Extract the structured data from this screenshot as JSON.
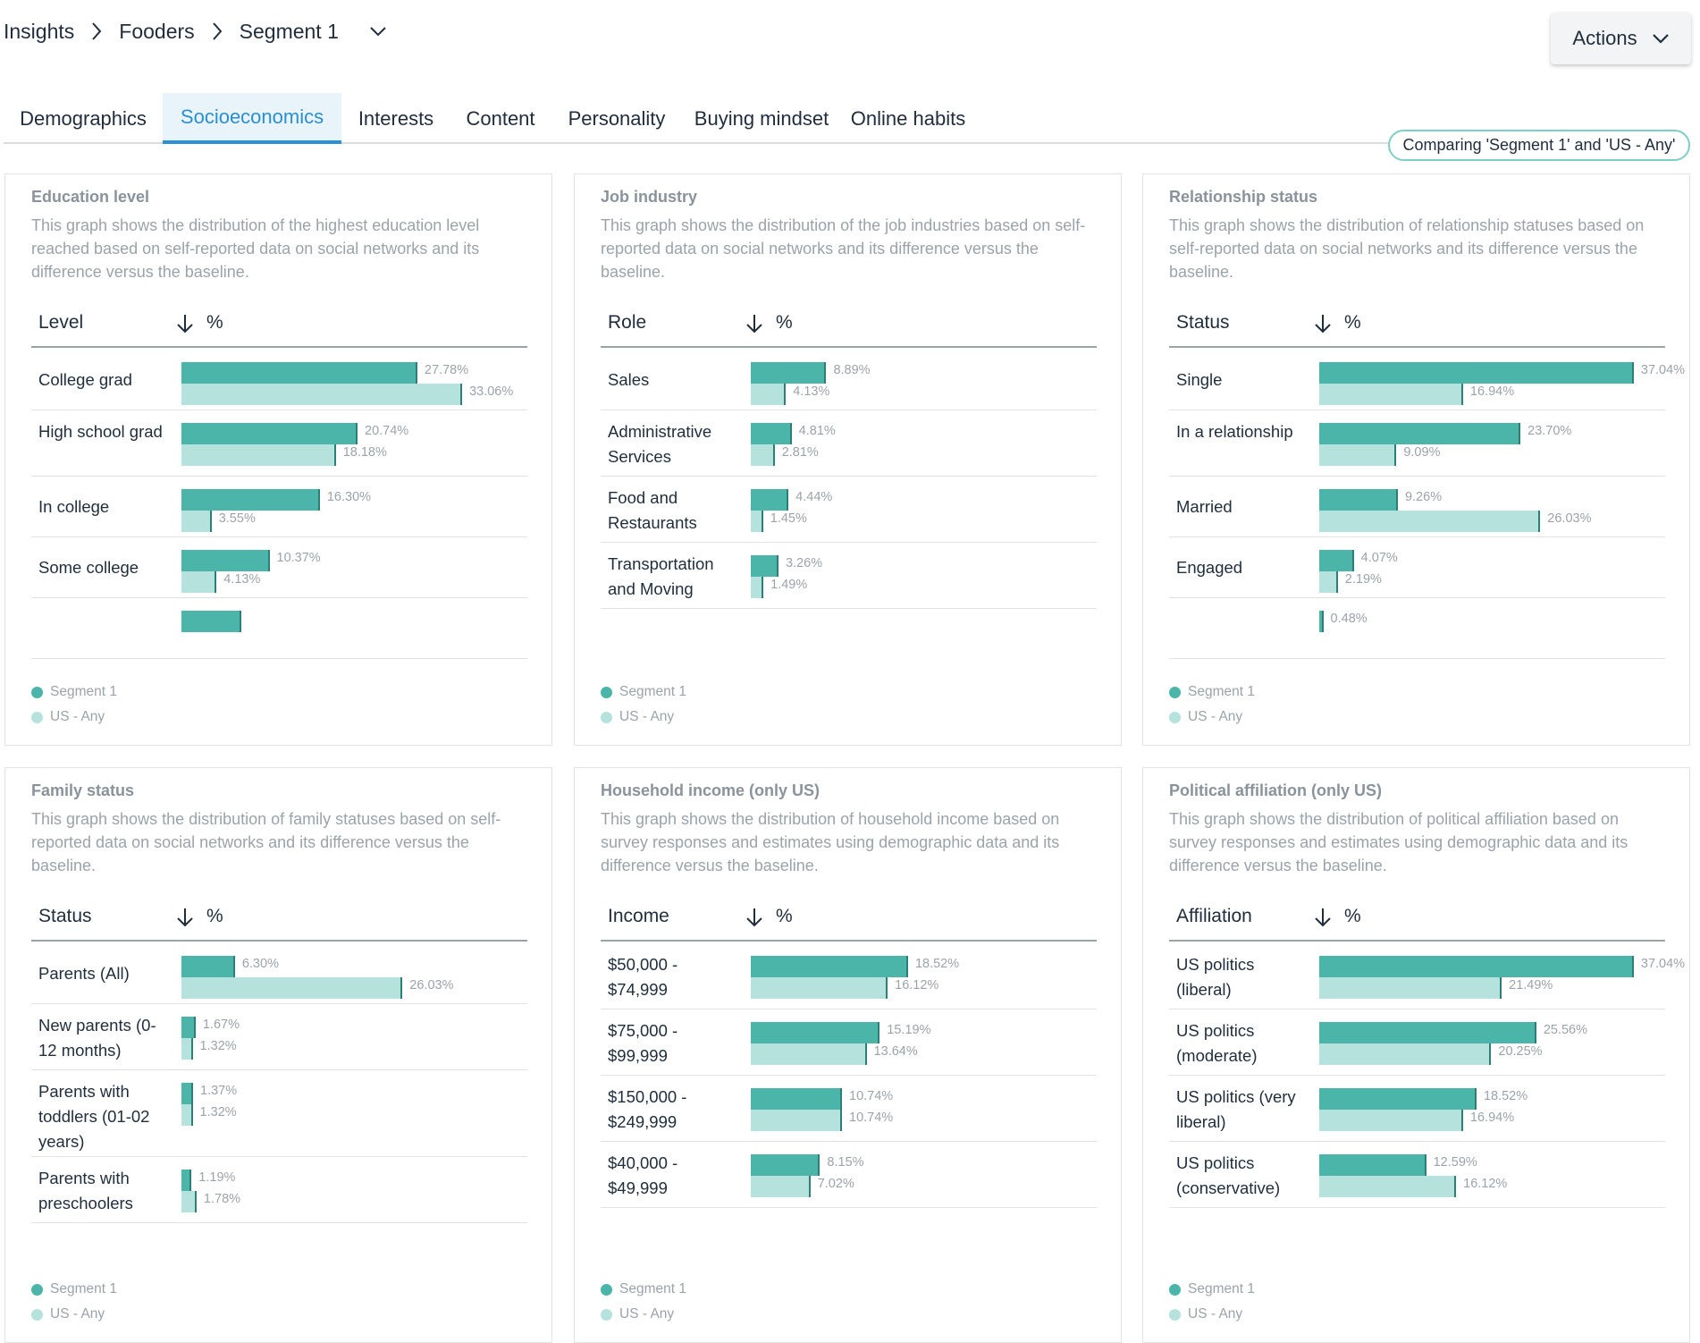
{
  "breadcrumb": {
    "items": [
      "Insights",
      "Fooders",
      "Segment 1"
    ]
  },
  "actions": {
    "label": "Actions"
  },
  "tabs": [
    "Demographics",
    "Socioeconomics",
    "Interests",
    "Content",
    "Personality",
    "Buying mindset",
    "Online habits"
  ],
  "active_tab": "Socioeconomics",
  "compare_pill": "Comparing 'Segment 1' and 'US - Any'",
  "colors": {
    "segment": "#4ab5a8",
    "baseline": "#b5e2dd",
    "accent": "#2a8fd3",
    "pill_border": "#7ccfc4"
  },
  "legend": {
    "segment": "Segment 1",
    "baseline": "US - Any"
  },
  "percent_header": "%",
  "cards": [
    {
      "title": "Education level",
      "description": "This graph shows the distribution of the highest education level reached based on self-reported data on social networks and its difference versus the baseline.",
      "column": "Level",
      "rows": [
        {
          "label": "College grad",
          "segment": 27.78,
          "baseline": 33.06,
          "segment_label": "27.78%",
          "baseline_label": "33.06%"
        },
        {
          "label": "High school grad",
          "segment": 20.74,
          "baseline": 18.18,
          "segment_label": "20.74%",
          "baseline_label": "18.18%"
        },
        {
          "label": "In college",
          "segment": 16.3,
          "baseline": 3.55,
          "segment_label": "16.30%",
          "baseline_label": "3.55%"
        },
        {
          "label": "Some college",
          "segment": 10.37,
          "baseline": 4.13,
          "segment_label": "10.37%",
          "baseline_label": "4.13%"
        },
        {
          "label": "",
          "segment": 7.0,
          "baseline": 0,
          "segment_label": "",
          "baseline_label": ""
        }
      ]
    },
    {
      "title": "Job industry",
      "description": "This graph shows the distribution of the job industries based on self-reported data on social networks and its difference versus the baseline.",
      "column": "Role",
      "rows": [
        {
          "label": "Sales",
          "segment": 8.89,
          "baseline": 4.13,
          "segment_label": "8.89%",
          "baseline_label": "4.13%"
        },
        {
          "label": "Administrative Services",
          "segment": 4.81,
          "baseline": 2.81,
          "segment_label": "4.81%",
          "baseline_label": "2.81%"
        },
        {
          "label": "Food and Restaurants",
          "segment": 4.44,
          "baseline": 1.45,
          "segment_label": "4.44%",
          "baseline_label": "1.45%"
        },
        {
          "label": "Transportation and Moving",
          "segment": 3.26,
          "baseline": 1.49,
          "segment_label": "3.26%",
          "baseline_label": "1.49%"
        }
      ]
    },
    {
      "title": "Relationship status",
      "description": "This graph shows the distribution of relationship statuses based on self-reported data on social networks and its difference versus the baseline.",
      "column": "Status",
      "rows": [
        {
          "label": "Single",
          "segment": 37.04,
          "baseline": 16.94,
          "segment_label": "37.04%",
          "baseline_label": "16.94%"
        },
        {
          "label": "In a relationship",
          "segment": 23.7,
          "baseline": 9.09,
          "segment_label": "23.70%",
          "baseline_label": "9.09%"
        },
        {
          "label": "Married",
          "segment": 9.26,
          "baseline": 26.03,
          "segment_label": "9.26%",
          "baseline_label": "26.03%"
        },
        {
          "label": "Engaged",
          "segment": 4.07,
          "baseline": 2.19,
          "segment_label": "4.07%",
          "baseline_label": "2.19%"
        },
        {
          "label": "",
          "segment": 0.48,
          "baseline": 0,
          "segment_label": "0.48%",
          "baseline_label": ""
        }
      ]
    },
    {
      "title": "Family status",
      "description": "This graph shows the distribution of family statuses based on self-reported data on social networks and its difference versus the baseline.",
      "column": "Status",
      "rows": [
        {
          "label": "Parents (All)",
          "segment": 6.3,
          "baseline": 26.03,
          "segment_label": "6.30%",
          "baseline_label": "26.03%"
        },
        {
          "label": "New parents (0-12 months)",
          "segment": 1.67,
          "baseline": 1.32,
          "segment_label": "1.67%",
          "baseline_label": "1.32%"
        },
        {
          "label": "Parents with toddlers (01-02 years)",
          "segment": 1.37,
          "baseline": 1.32,
          "segment_label": "1.37%",
          "baseline_label": "1.32%"
        },
        {
          "label": "Parents with preschoolers",
          "segment": 1.19,
          "baseline": 1.78,
          "segment_label": "1.19%",
          "baseline_label": "1.78%"
        }
      ]
    },
    {
      "title": "Household income (only US)",
      "description": "This graph shows the distribution of household income based on survey responses and estimates using demographic data and its difference versus the baseline.",
      "column": "Income",
      "rows": [
        {
          "label": "$50,000 - $74,999",
          "segment": 18.52,
          "baseline": 16.12,
          "segment_label": "18.52%",
          "baseline_label": "16.12%"
        },
        {
          "label": "$75,000 - $99,999",
          "segment": 15.19,
          "baseline": 13.64,
          "segment_label": "15.19%",
          "baseline_label": "13.64%"
        },
        {
          "label": "$150,000 - $249,999",
          "segment": 10.74,
          "baseline": 10.74,
          "segment_label": "10.74%",
          "baseline_label": "10.74%"
        },
        {
          "label": "$40,000 - $49,999",
          "segment": 8.15,
          "baseline": 7.02,
          "segment_label": "8.15%",
          "baseline_label": "7.02%"
        }
      ]
    },
    {
      "title": "Political affiliation (only US)",
      "description": "This graph shows the distribution of political affiliation based on survey responses and estimates using demographic data and its difference versus the baseline.",
      "column": "Affiliation",
      "rows": [
        {
          "label": "US politics (liberal)",
          "segment": 37.04,
          "baseline": 21.49,
          "segment_label": "37.04%",
          "baseline_label": "21.49%"
        },
        {
          "label": "US politics (moderate)",
          "segment": 25.56,
          "baseline": 20.25,
          "segment_label": "25.56%",
          "baseline_label": "20.25%"
        },
        {
          "label": "US politics (very liberal)",
          "segment": 18.52,
          "baseline": 16.94,
          "segment_label": "18.52%",
          "baseline_label": "16.94%"
        },
        {
          "label": "US politics (conservative)",
          "segment": 12.59,
          "baseline": 16.12,
          "segment_label": "12.59%",
          "baseline_label": "16.12%"
        }
      ]
    }
  ]
}
